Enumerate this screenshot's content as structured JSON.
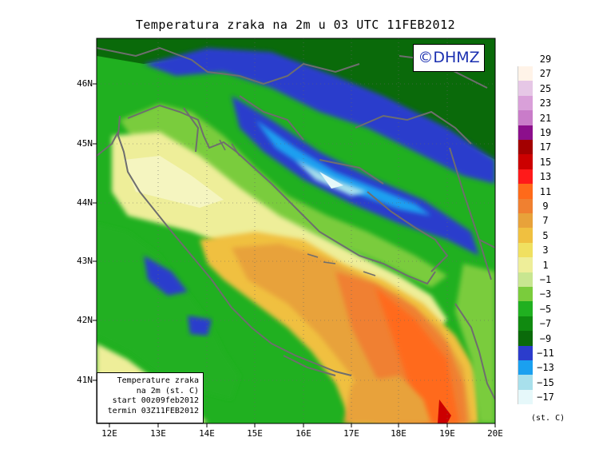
{
  "title": "Temperatura zraka na 2m u 03 UTC 11FEB2012",
  "copyright": "©DHMZ",
  "info_box": {
    "line1": "Temperature zraka",
    "line2": "na 2m (st. C)",
    "line3": "start 00z09feb2012",
    "line4": "termin 03Z11FEB2012"
  },
  "lat_labels": [
    "46N",
    "45N",
    "44N",
    "43N",
    "42N",
    "41N"
  ],
  "lon_labels": [
    "12E",
    "13E",
    "14E",
    "15E",
    "16E",
    "17E",
    "18E",
    "19E",
    "20E"
  ],
  "legend": {
    "unit": "(st. C)",
    "labels": [
      "29",
      "27",
      "25",
      "23",
      "21",
      "19",
      "17",
      "15",
      "13",
      "11",
      "9",
      "7",
      "5",
      "3",
      "1",
      "−1",
      "−3",
      "−5",
      "−7",
      "−9",
      "−11",
      "−13",
      "−15",
      "−17"
    ],
    "colors": [
      "#fff3e8",
      "#e6c7e6",
      "#d9a0d9",
      "#c97cc9",
      "#8c0f8c",
      "#a30000",
      "#cc0000",
      "#ff1a1a",
      "#ff6a1a",
      "#f08030",
      "#e8a23a",
      "#f0c040",
      "#f0e060",
      "#eeee99",
      "#c8e690",
      "#7acc3c",
      "#20b020",
      "#108a10",
      "#0a6a0a",
      "#2b3ccc",
      "#1aa0f0",
      "#a8e0ec",
      "#e6f8fa"
    ]
  }
}
